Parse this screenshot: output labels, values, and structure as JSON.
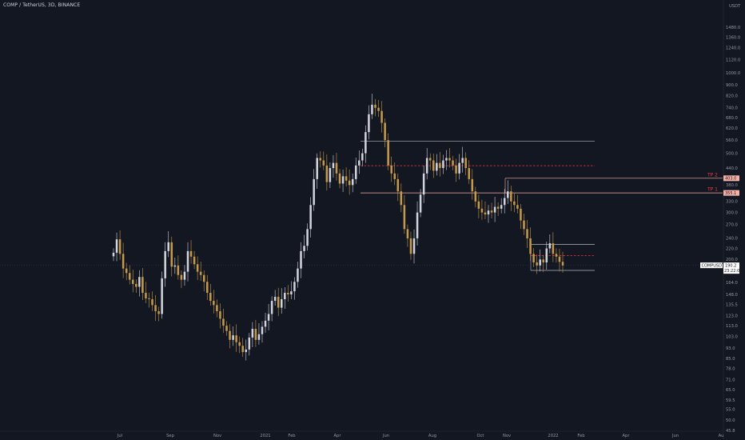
{
  "header": {
    "title": "COMP / TetherUS, 3D, BINANCE"
  },
  "price_axis_currency": {
    "line1": "",
    "line2": "USDT"
  },
  "colors": {
    "background": "#131722",
    "bull_candle": "#d1d4dc",
    "bear_candle": "#c69a4a",
    "level_line": "#b2b5be",
    "dashed_level": "#f23645",
    "tp_tag_bg": "#f7b2a8",
    "price_tag_bg": "#ffffff",
    "axis_text": "#9598a1"
  },
  "chart_data": {
    "type": "candlestick",
    "symbol": "COMP / TetherUS",
    "interval": "3D",
    "exchange": "BINANCE",
    "y_scale": "log",
    "ylim": [
      45.8,
      1750
    ],
    "y_ticks": [
      "1480.0",
      "1360.0",
      "1240.0",
      "1120.0",
      "1000.0",
      "900.0",
      "820.0",
      "740.0",
      "680.0",
      "620.0",
      "560.0",
      "500.0",
      "440.0",
      "380.0",
      "330.0",
      "300.0",
      "270.0",
      "240.0",
      "220.0",
      "200.0",
      "164.0",
      "148.0",
      "135.5",
      "123.0",
      "113.0",
      "103.0",
      "93.0",
      "85.0",
      "78.0",
      "71.0",
      "65.0",
      "59.5",
      "55.0",
      "50.0",
      "45.8"
    ],
    "x_ticks": [
      "Jul",
      "Sep",
      "Nov",
      "2021",
      "Feb",
      "Apr",
      "Jun",
      "Aug",
      "Oct",
      "Nov",
      "2022",
      "Feb",
      "Apr",
      "Jun",
      "Au"
    ],
    "levels": [
      {
        "price": 555,
        "style": "solid",
        "label": ""
      },
      {
        "price": 449,
        "style": "dashed",
        "label": ""
      },
      {
        "price": 403.0,
        "style": "solid",
        "label": "TP 2",
        "tag": "403.0"
      },
      {
        "price": 355.1,
        "style": "solid",
        "label": "TP 1",
        "tag": "355.1"
      },
      {
        "price": 228,
        "style": "solid",
        "label": ""
      },
      {
        "price": 207,
        "style": "dashed",
        "label": ""
      },
      {
        "price": 182,
        "style": "solid",
        "label": ""
      }
    ],
    "last_price": {
      "symbol": "COMPUSDT",
      "value": "190.2",
      "countdown": "23:22:05"
    },
    "candle_closes": [
      212,
      238,
      210,
      185,
      178,
      168,
      162,
      158,
      172,
      150,
      143,
      142,
      135,
      128,
      125,
      170,
      215,
      232,
      188,
      190,
      175,
      168,
      180,
      215,
      205,
      192,
      180,
      175,
      165,
      150,
      140,
      135,
      128,
      120,
      113,
      108,
      100,
      104,
      98,
      95,
      90,
      92,
      102,
      110,
      100,
      105,
      112,
      118,
      125,
      140,
      145,
      132,
      142,
      150,
      148,
      152,
      165,
      185,
      215,
      225,
      260,
      320,
      400,
      480,
      470,
      450,
      390,
      440,
      460,
      420,
      385,
      410,
      395,
      380,
      400,
      450,
      470,
      500,
      600,
      700,
      760,
      740,
      720,
      650,
      560,
      450,
      420,
      400,
      360,
      320,
      260,
      240,
      210,
      240,
      300,
      350,
      420,
      480,
      470,
      430,
      460,
      440,
      470,
      480,
      470,
      450,
      420,
      460,
      480,
      440,
      400,
      360,
      330,
      310,
      300,
      295,
      305,
      300,
      315,
      310,
      320,
      340,
      360,
      330,
      320,
      310,
      280,
      260,
      240,
      210,
      195,
      190,
      200,
      195,
      220,
      230,
      210,
      205,
      196,
      190
    ],
    "candle_count_note": ""
  }
}
